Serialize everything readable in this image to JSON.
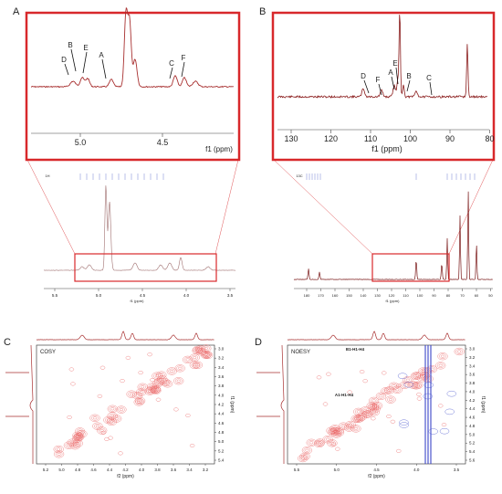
{
  "panels": {
    "A": {
      "letter": "A",
      "peaks": [
        "D",
        "B",
        "E",
        "A",
        "C",
        "F"
      ],
      "ticks": [
        "5.0",
        "4.5"
      ],
      "unit": "f1 (ppm)",
      "full_ticks": [
        "5.5",
        "5.0",
        "4.5",
        "4.0",
        "3.5"
      ],
      "full_unit": "f1 (ppm)",
      "top_label": "1H"
    },
    "B": {
      "letter": "B",
      "peaks": [
        "D",
        "F",
        "A",
        "E",
        "B",
        "C"
      ],
      "ticks": [
        "130",
        "120",
        "110",
        "100",
        "90",
        "80"
      ],
      "unit": "f1 (ppm)",
      "full_ticks": [
        "180",
        "170",
        "160",
        "150",
        "140",
        "130",
        "120",
        "110",
        "100",
        "90",
        "80",
        "70",
        "60",
        "50"
      ],
      "full_unit": "f1 (ppm)",
      "top_label": "13C"
    },
    "C": {
      "letter": "C",
      "title": "COSY",
      "x_ticks": [
        "5.2",
        "5.0",
        "4.8",
        "4.6",
        "4.4",
        "4.2",
        "4.0",
        "3.8",
        "3.6",
        "3.4",
        "3.2"
      ],
      "y_ticks": [
        "3.0",
        "3.2",
        "3.4",
        "3.6",
        "3.8",
        "4.0",
        "4.2",
        "4.4",
        "4.6",
        "4.8",
        "5.0",
        "5.2",
        "5.4"
      ],
      "xlabel": "f2 (ppm)",
      "ylabel": "f1 (ppm)"
    },
    "D": {
      "letter": "D",
      "title": "NOESY",
      "x_ticks": [
        "5.5",
        "5.0",
        "4.5",
        "4.0",
        "3.5"
      ],
      "y_ticks": [
        "3.0",
        "3.2",
        "3.4",
        "3.6",
        "3.8",
        "4.0",
        "4.2",
        "4.4",
        "4.6",
        "4.8",
        "5.0",
        "5.2",
        "5.4",
        "5.6"
      ],
      "xlabel": "f2 (ppm)",
      "ylabel": "f1 (ppm)",
      "annotations": [
        "A1-H1-H4",
        "B1-H1-H4"
      ]
    }
  },
  "colors": {
    "frame": "#d8282b",
    "spectrum": "#a83030",
    "contour": "#e85a5a",
    "noesy_negative": "#3a46c8",
    "label_blue": "#2b3bb8"
  }
}
